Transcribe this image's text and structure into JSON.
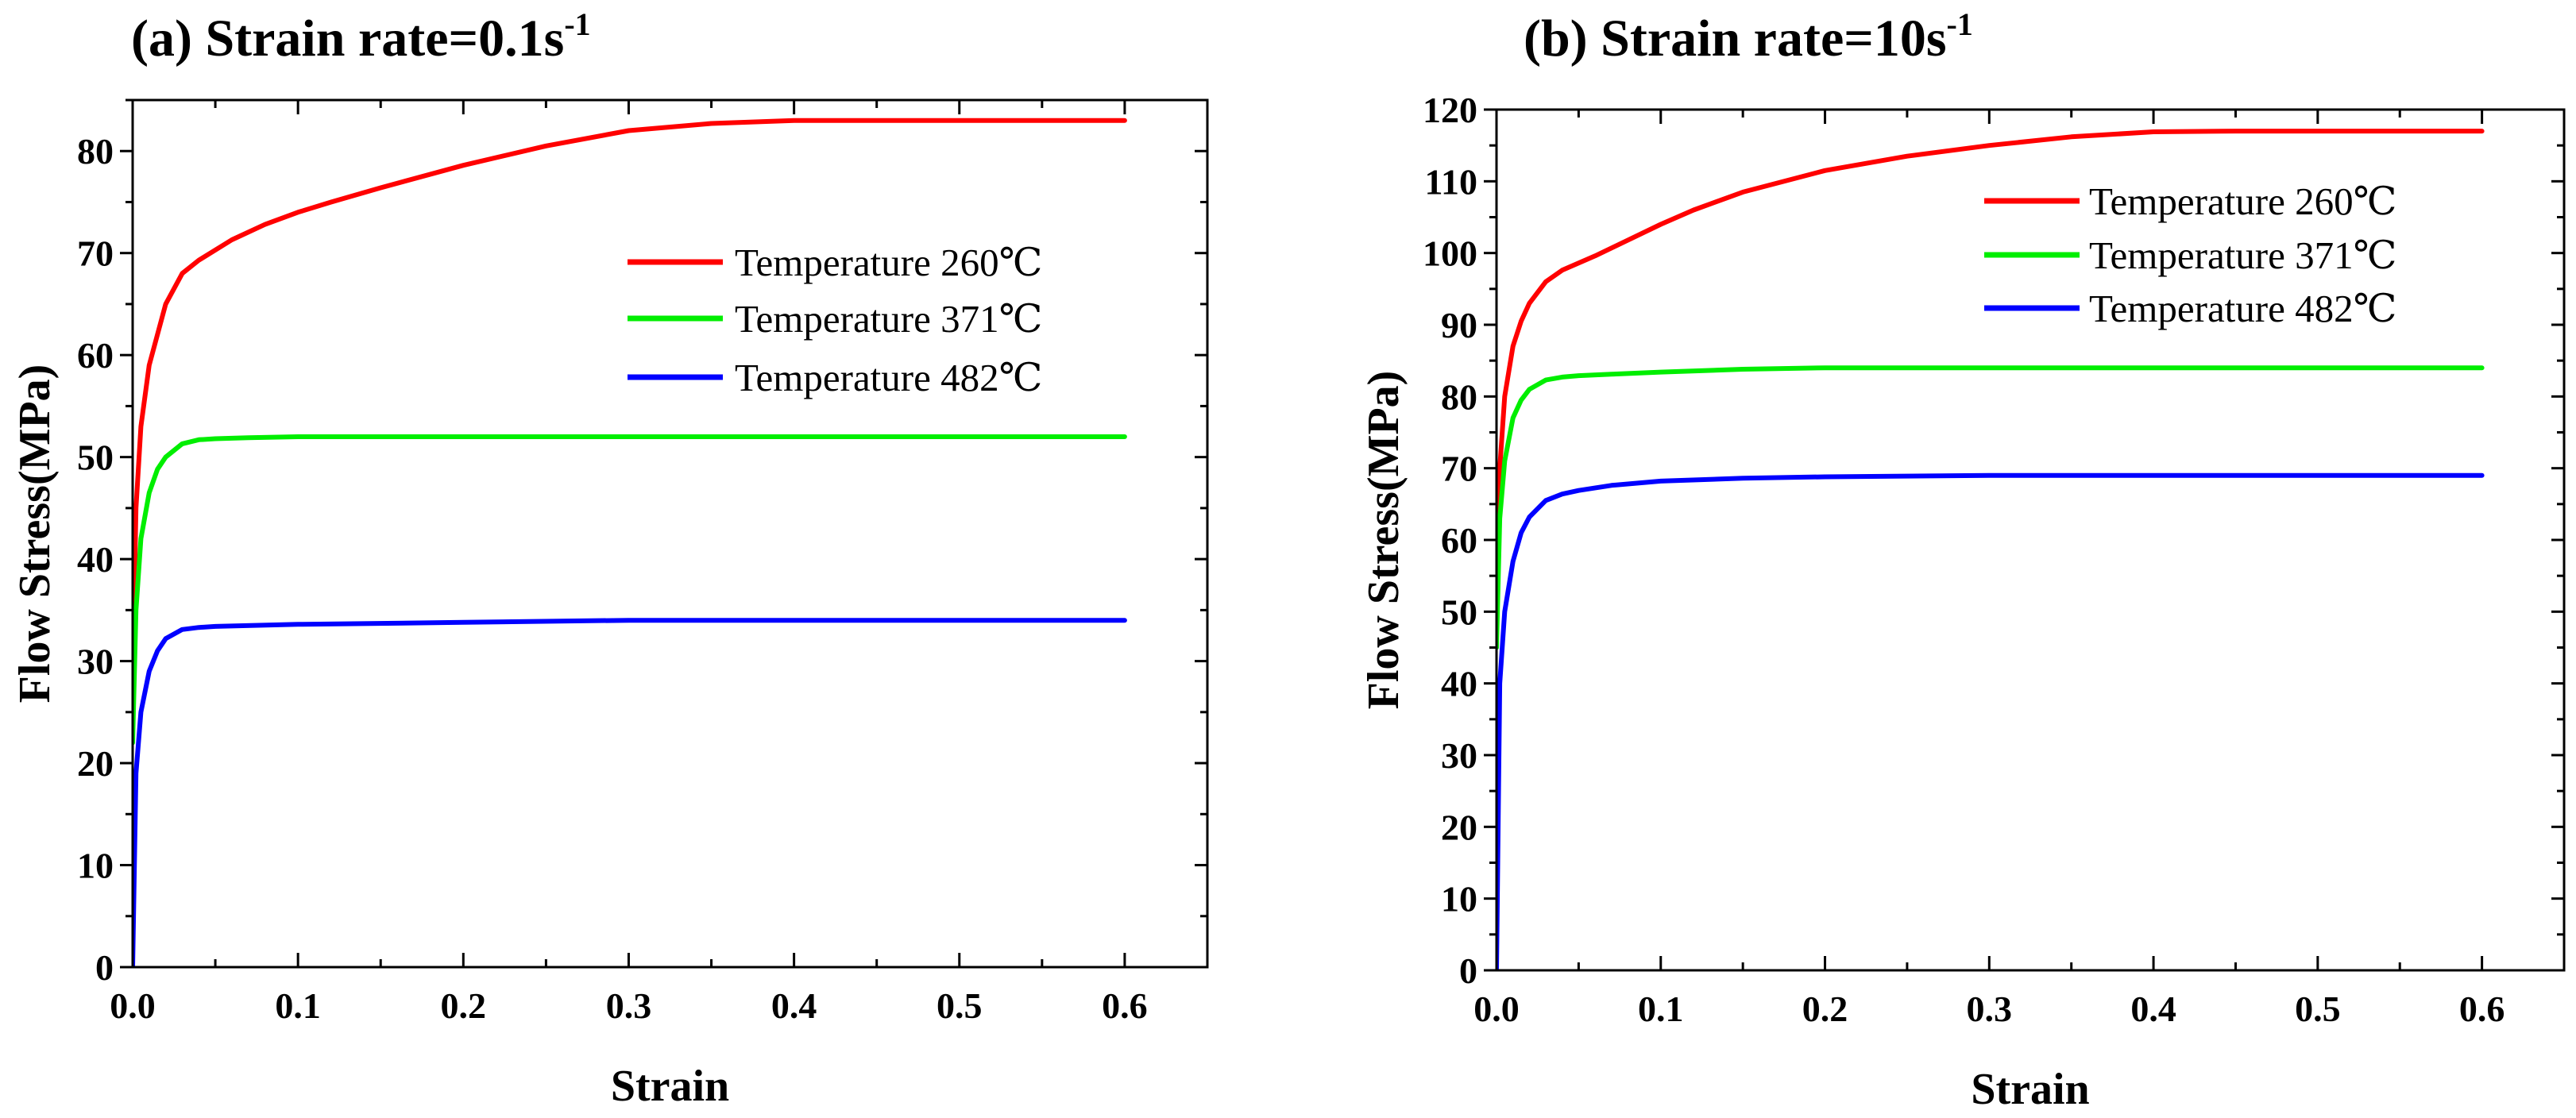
{
  "chart_data": [
    {
      "type": "line",
      "title": "(a) Strain rate=0.1s",
      "title_superscript": "-1",
      "xlabel": "Strain",
      "ylabel": "Flow Stress(MPa)",
      "xlim": [
        0,
        0.65
      ],
      "ylim": [
        0,
        85
      ],
      "xticks": [
        0.0,
        0.1,
        0.2,
        0.3,
        0.4,
        0.5,
        0.6
      ],
      "xtick_labels": [
        "0.0",
        "0.1",
        "0.2",
        "0.3",
        "0.4",
        "0.5",
        "0.6"
      ],
      "yticks": [
        0,
        10,
        20,
        30,
        40,
        50,
        60,
        70,
        80
      ],
      "ytick_labels": [
        "0",
        "10",
        "20",
        "30",
        "40",
        "50",
        "60",
        "70",
        "80"
      ],
      "legend_position": "upper-right",
      "series": [
        {
          "name": "Temperature 260℃",
          "color": "#ff0000",
          "x": [
            0,
            0.002,
            0.005,
            0.01,
            0.02,
            0.03,
            0.04,
            0.06,
            0.08,
            0.1,
            0.12,
            0.15,
            0.2,
            0.25,
            0.3,
            0.35,
            0.4,
            0.45,
            0.5,
            0.55,
            0.6
          ],
          "y": [
            28,
            45,
            53,
            59,
            65,
            68,
            69.3,
            71.3,
            72.8,
            74,
            75,
            76.4,
            78.6,
            80.5,
            82,
            82.7,
            83,
            83,
            83,
            83,
            83
          ]
        },
        {
          "name": "Temperature 371℃",
          "color": "#00ee00",
          "x": [
            0,
            0.002,
            0.005,
            0.01,
            0.015,
            0.02,
            0.03,
            0.04,
            0.05,
            0.07,
            0.1,
            0.2,
            0.3,
            0.4,
            0.5,
            0.6
          ],
          "y": [
            22,
            35,
            42,
            46.5,
            48.8,
            50,
            51.3,
            51.7,
            51.8,
            51.9,
            52,
            52,
            52,
            52,
            52,
            52
          ]
        },
        {
          "name": "Temperature 482℃",
          "color": "#0000ff",
          "x": [
            0,
            0.002,
            0.005,
            0.01,
            0.015,
            0.02,
            0.03,
            0.04,
            0.05,
            0.1,
            0.2,
            0.3,
            0.4,
            0.5,
            0.6
          ],
          "y": [
            0,
            19,
            25,
            29,
            31,
            32.2,
            33.1,
            33.3,
            33.4,
            33.6,
            33.8,
            34,
            34,
            34,
            34
          ]
        }
      ]
    },
    {
      "type": "line",
      "title": "(b) Strain rate=10s",
      "title_superscript": "-1",
      "xlabel": "Strain",
      "ylabel": "Flow Stress(MPa)",
      "xlim": [
        0,
        0.65
      ],
      "ylim": [
        0,
        120
      ],
      "xticks": [
        0.0,
        0.1,
        0.2,
        0.3,
        0.4,
        0.5,
        0.6
      ],
      "xtick_labels": [
        "0.0",
        "0.1",
        "0.2",
        "0.3",
        "0.4",
        "0.5",
        "0.6"
      ],
      "yticks": [
        0,
        10,
        20,
        30,
        40,
        50,
        60,
        70,
        80,
        90,
        100,
        110,
        120
      ],
      "ytick_labels": [
        "0",
        "10",
        "20",
        "30",
        "40",
        "50",
        "60",
        "70",
        "80",
        "90",
        "100",
        "110",
        "120"
      ],
      "legend_position": "upper-right",
      "series": [
        {
          "name": "Temperature 260℃",
          "color": "#ff0000",
          "x": [
            0,
            0.002,
            0.005,
            0.01,
            0.015,
            0.02,
            0.03,
            0.04,
            0.06,
            0.08,
            0.1,
            0.12,
            0.15,
            0.2,
            0.25,
            0.3,
            0.35,
            0.4,
            0.45,
            0.5,
            0.55,
            0.6
          ],
          "y": [
            50,
            70,
            80,
            87,
            90.5,
            93,
            96,
            97.6,
            99.6,
            101.8,
            104,
            106,
            108.5,
            111.5,
            113.5,
            115,
            116.2,
            116.9,
            117,
            117,
            117,
            117
          ]
        },
        {
          "name": "Temperature 371℃",
          "color": "#00ee00",
          "x": [
            0,
            0.002,
            0.005,
            0.01,
            0.015,
            0.02,
            0.03,
            0.04,
            0.05,
            0.07,
            0.1,
            0.15,
            0.2,
            0.3,
            0.4,
            0.5,
            0.6
          ],
          "y": [
            45,
            63,
            71,
            77,
            79.5,
            81,
            82.3,
            82.7,
            82.9,
            83.1,
            83.4,
            83.8,
            84,
            84,
            84,
            84,
            84
          ]
        },
        {
          "name": "Temperature 482℃",
          "color": "#0000ff",
          "x": [
            0,
            0.002,
            0.005,
            0.01,
            0.015,
            0.02,
            0.03,
            0.04,
            0.05,
            0.07,
            0.1,
            0.15,
            0.2,
            0.3,
            0.4,
            0.5,
            0.6
          ],
          "y": [
            0,
            40,
            50,
            57,
            61,
            63.2,
            65.5,
            66.4,
            66.9,
            67.6,
            68.2,
            68.6,
            68.8,
            69,
            69,
            69,
            69
          ]
        }
      ]
    }
  ]
}
